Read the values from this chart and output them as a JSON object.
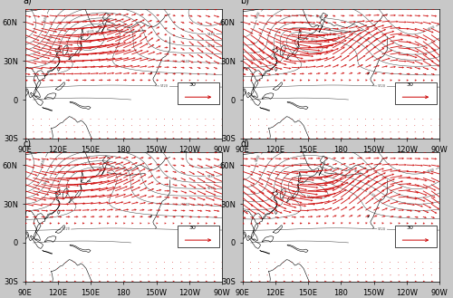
{
  "panels": [
    {
      "label": "a)"
    },
    {
      "label": "b)"
    },
    {
      "label": "c)"
    },
    {
      "label": "d)"
    }
  ],
  "lon_range": [
    90,
    270
  ],
  "lat_range": [
    -30,
    70
  ],
  "lon_ticks": [
    90,
    120,
    150,
    180,
    210,
    240,
    270
  ],
  "lon_labels": [
    "90E",
    "120E",
    "150E",
    "180",
    "150W",
    "120W",
    "90W"
  ],
  "lat_ticks": [
    -30,
    0,
    30,
    60
  ],
  "lat_labels": [
    "30S",
    "0",
    "30N",
    "60N"
  ],
  "contour_color": "#404040",
  "vector_color": "#cc0000",
  "background_color": "#ffffff",
  "figure_bg": "#c8c8c8",
  "contour_interval": 40,
  "reference_arrow": 30,
  "label_fontsize": 8,
  "tick_fontsize": 6
}
